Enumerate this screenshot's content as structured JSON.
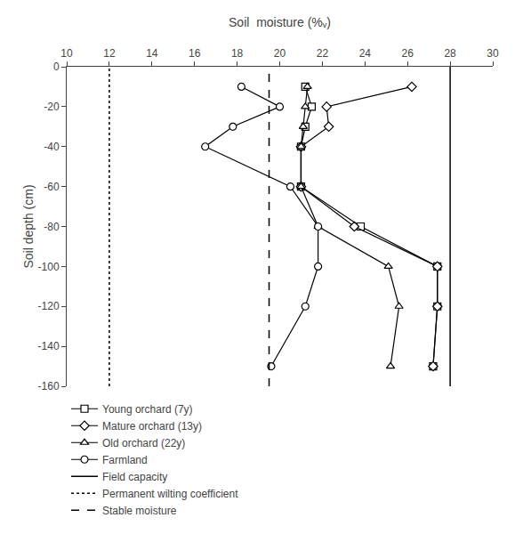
{
  "chart_data": {
    "type": "line",
    "xlabel": "Soil  moisture (%ᵥ)",
    "ylabel": "Soil depth (cm)",
    "xlim": [
      10,
      30
    ],
    "ylim": [
      -160,
      0
    ],
    "xticks": [
      10,
      12,
      14,
      16,
      18,
      20,
      22,
      24,
      26,
      28,
      30
    ],
    "yticks": [
      0,
      -20,
      -40,
      -60,
      -80,
      -100,
      -120,
      -140,
      -160
    ],
    "grid": false,
    "legend": "bottom",
    "y": [
      -10,
      -20,
      -30,
      -40,
      -60,
      -80,
      -100,
      -120,
      -150
    ],
    "series": [
      {
        "name": "Young orchard (7y)",
        "color": "#000000",
        "marker": "square",
        "line_style": "solid",
        "x": [
          21.2,
          21.5,
          21.2,
          21.0,
          21.0,
          23.8,
          27.4,
          27.4,
          27.2
        ]
      },
      {
        "name": "Mature orchard (13y)",
        "color": "#000000",
        "marker": "diamond",
        "line_style": "solid",
        "x": [
          26.2,
          22.2,
          22.3,
          21.0,
          21.0,
          23.5,
          27.4,
          27.4,
          27.2
        ]
      },
      {
        "name": "Old orchard (22y)",
        "color": "#000000",
        "marker": "triangle-up",
        "line_style": "solid",
        "x": [
          21.3,
          21.2,
          21.1,
          21.0,
          21.0,
          21.8,
          25.1,
          25.6,
          25.2
        ]
      },
      {
        "name": "Farmland",
        "color": "#000000",
        "marker": "circle",
        "line_style": "solid",
        "x": [
          18.2,
          20.0,
          17.8,
          16.5,
          20.5,
          21.8,
          21.8,
          21.2,
          19.6
        ]
      },
      {
        "name": "Field capacity",
        "type": "vline",
        "color": "#000000",
        "line_style": "solid",
        "value": 28.0
      },
      {
        "name": "Permanent wilting coefficient",
        "type": "vline",
        "color": "#000000",
        "line_style": "dot",
        "value": 12.0
      },
      {
        "name": "Stable moisture",
        "type": "vline",
        "color": "#000000",
        "line_style": "dash",
        "value": 19.5
      }
    ]
  }
}
